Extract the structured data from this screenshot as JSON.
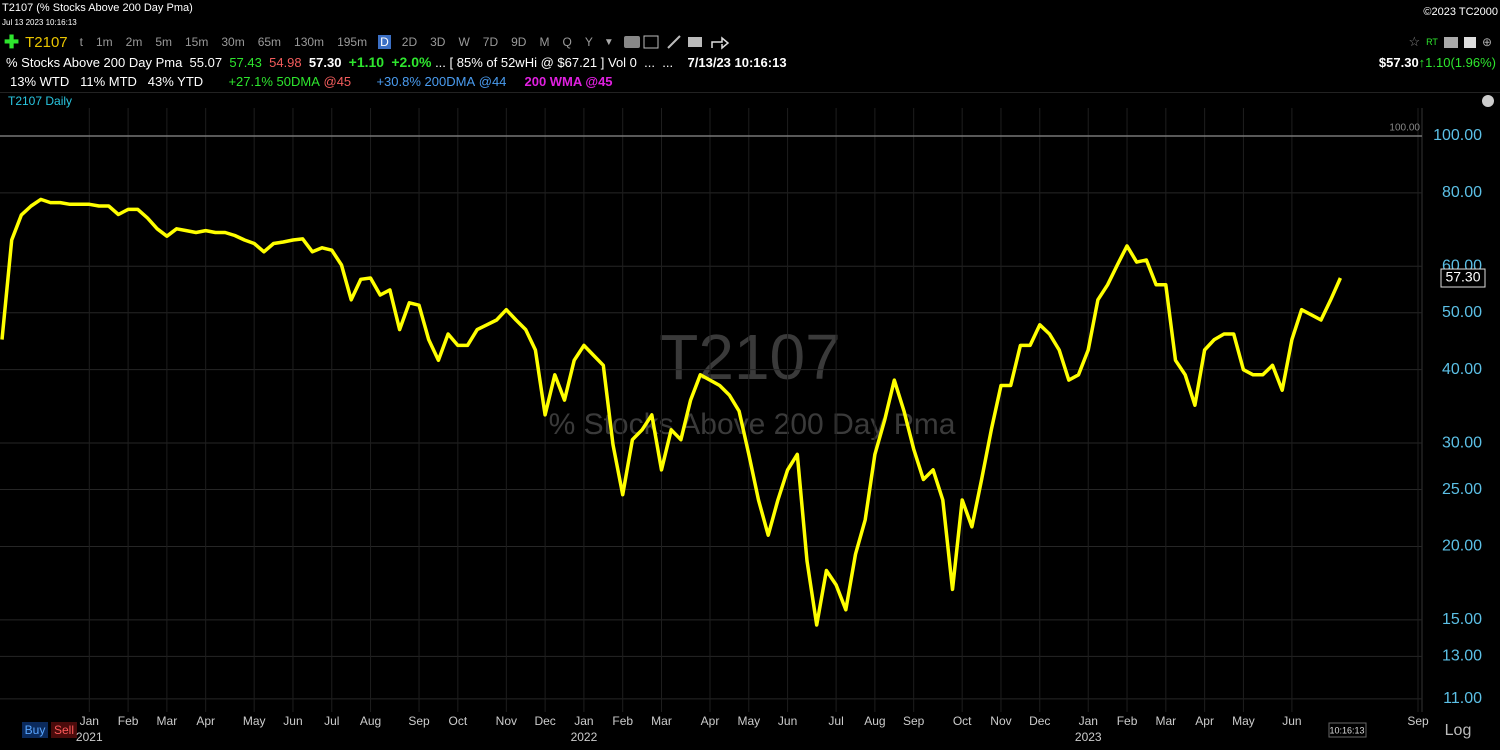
{
  "window": {
    "title": "T2107 (% Stocks Above 200 Day Pma)",
    "timestamp": "Jul 13 2023 10:16:13",
    "copyright": "©2023 TC2000"
  },
  "toolbar": {
    "symbol": "T2107",
    "intervals": [
      "t",
      "1m",
      "2m",
      "5m",
      "15m",
      "30m",
      "65m",
      "130m",
      "195m",
      "D",
      "2D",
      "3D",
      "W",
      "7D",
      "9D",
      "M",
      "Q",
      "Y"
    ],
    "selected": "D",
    "realtime": "RT"
  },
  "info": {
    "name": "% Stocks Above 200 Day Pma",
    "open": "55.07",
    "high": "57.43",
    "low": "54.98",
    "last": "57.30",
    "change": "+1.10",
    "change_pct": "+2.0%",
    "more1": "...",
    "range": "[ 85% of 52wHi @ $67.21 ]",
    "volume": "Vol 0",
    "more2": "...",
    "more3": "...",
    "datetime": "7/13/23 10:16:13",
    "price": "$57.30",
    "arrow": "↑",
    "price_change": "1.10(1.96%)"
  },
  "stats": {
    "wtd": "13% WTD",
    "mtd": "11% MTD",
    "ytd": "43% YTD",
    "dma50": "+27.1% 50DMA",
    "dma50_at": "@45",
    "dma200": "+30.8% 200DMA",
    "dma200_at": "@44",
    "wma200": "200 WMA @45"
  },
  "watermark": {
    "symbol": "T2107",
    "name": "% Stocks Above 200 Day Pma"
  },
  "buttons": {
    "buy": "Buy",
    "sell": "Sell"
  },
  "time_box": "10:16:13",
  "scale_mode": "Log",
  "chart_data": {
    "type": "line",
    "log": true,
    "grid": true,
    "categories": [
      null,
      null,
      null,
      null,
      null,
      null,
      null,
      null,
      null,
      "Jan",
      null,
      null,
      null,
      "Feb",
      null,
      null,
      null,
      "Mar",
      null,
      null,
      null,
      "Apr",
      null,
      null,
      null,
      null,
      "May",
      null,
      null,
      null,
      "Jun",
      null,
      null,
      null,
      "Jul",
      null,
      null,
      null,
      "Aug",
      null,
      null,
      null,
      null,
      "Sep",
      null,
      null,
      null,
      "Oct",
      null,
      null,
      null,
      null,
      "Nov",
      null,
      null,
      null,
      "Dec",
      null,
      null,
      null,
      "Jan",
      null,
      null,
      null,
      "Feb",
      null,
      null,
      null,
      "Mar",
      null,
      null,
      null,
      null,
      "Apr",
      null,
      null,
      null,
      "May",
      null,
      null,
      null,
      "Jun",
      null,
      null,
      null,
      null,
      "Jul",
      null,
      null,
      null,
      "Aug",
      null,
      null,
      null,
      "Sep",
      null,
      null,
      null,
      null,
      "Oct",
      null,
      null,
      null,
      "Nov",
      null,
      null,
      null,
      "Dec",
      null,
      null,
      null,
      null,
      "Jan",
      null,
      null,
      null,
      "Feb",
      null,
      null,
      null,
      "Mar",
      null,
      null,
      null,
      "Apr",
      null,
      null,
      null,
      "May",
      null,
      null,
      null,
      null,
      "Jun",
      null,
      null,
      null,
      null,
      null,
      null,
      null,
      null,
      null,
      null,
      null,
      null,
      "Sep"
    ],
    "years": [
      "2021",
      "2022",
      "2023"
    ],
    "series": [
      {
        "name": "T2107 Daily",
        "color": "#ffff00",
        "values": [
          45,
          66.5,
          73.4,
          76,
          78,
          77,
          77,
          76.5,
          76.5,
          76.5,
          76,
          76,
          73.5,
          75,
          75,
          72.5,
          69.5,
          67.5,
          69.5,
          69,
          68.5,
          69,
          68.5,
          68.5,
          67.7,
          66.5,
          65.6,
          63.5,
          65.6,
          66,
          66.5,
          66.8,
          63.5,
          64.5,
          63.9,
          60.3,
          52.6,
          57,
          57.3,
          53.6,
          54.7,
          46.8,
          52,
          51.5,
          45,
          41.5,
          46,
          44,
          44,
          46.8,
          47.7,
          48.6,
          50.6,
          48.6,
          46.8,
          43.2,
          33.5,
          39.2,
          35.5,
          41.5,
          44,
          42.3,
          40.7,
          29.8,
          24.5,
          30.4,
          31.6,
          33.5,
          27,
          31.6,
          30.4,
          35.5,
          39.2,
          38.4,
          37.6,
          36.2,
          34,
          28.7,
          24,
          20.9,
          24,
          27,
          28.7,
          18.9,
          14.7,
          18.2,
          17.2,
          15.6,
          19.4,
          22.2,
          28.7,
          32.8,
          38.4,
          34,
          29.3,
          26,
          27,
          24,
          16.9,
          24,
          21.6,
          26,
          31.6,
          37.6,
          37.6,
          44,
          44,
          47.7,
          46,
          43.2,
          38.4,
          39.2,
          43.2,
          52.6,
          55.8,
          60.3,
          65,
          61,
          61.5,
          55.8,
          55.8,
          41.5,
          39.2,
          34.8,
          43.2,
          45,
          46,
          46,
          40,
          39.2,
          39.2,
          40.7,
          36.9,
          45,
          50.6,
          49.6,
          48.6,
          52.6,
          57.3,
          null,
          null,
          null,
          null,
          null,
          null,
          null,
          null
        ]
      }
    ],
    "ylim": [
      10.45,
      111.6
    ],
    "yticks": [
      {
        "value": 11,
        "label": "11.00"
      },
      {
        "value": 13,
        "label": "13.00"
      },
      {
        "value": 15,
        "label": "15.00"
      },
      {
        "value": 20,
        "label": "20.00"
      },
      {
        "value": 25,
        "label": "25.00"
      },
      {
        "value": 30,
        "label": "30.00"
      },
      {
        "value": 40,
        "label": "40.00"
      },
      {
        "value": 50,
        "label": "50.00"
      },
      {
        "value": 60,
        "label": "60.00"
      },
      {
        "value": 80,
        "label": "80.00"
      },
      {
        "value": 100,
        "label": "100.00"
      }
    ],
    "reference_line": {
      "value": 100,
      "label": "100.00"
    },
    "last_marker": {
      "value": 57.3,
      "label": "57.30"
    }
  }
}
